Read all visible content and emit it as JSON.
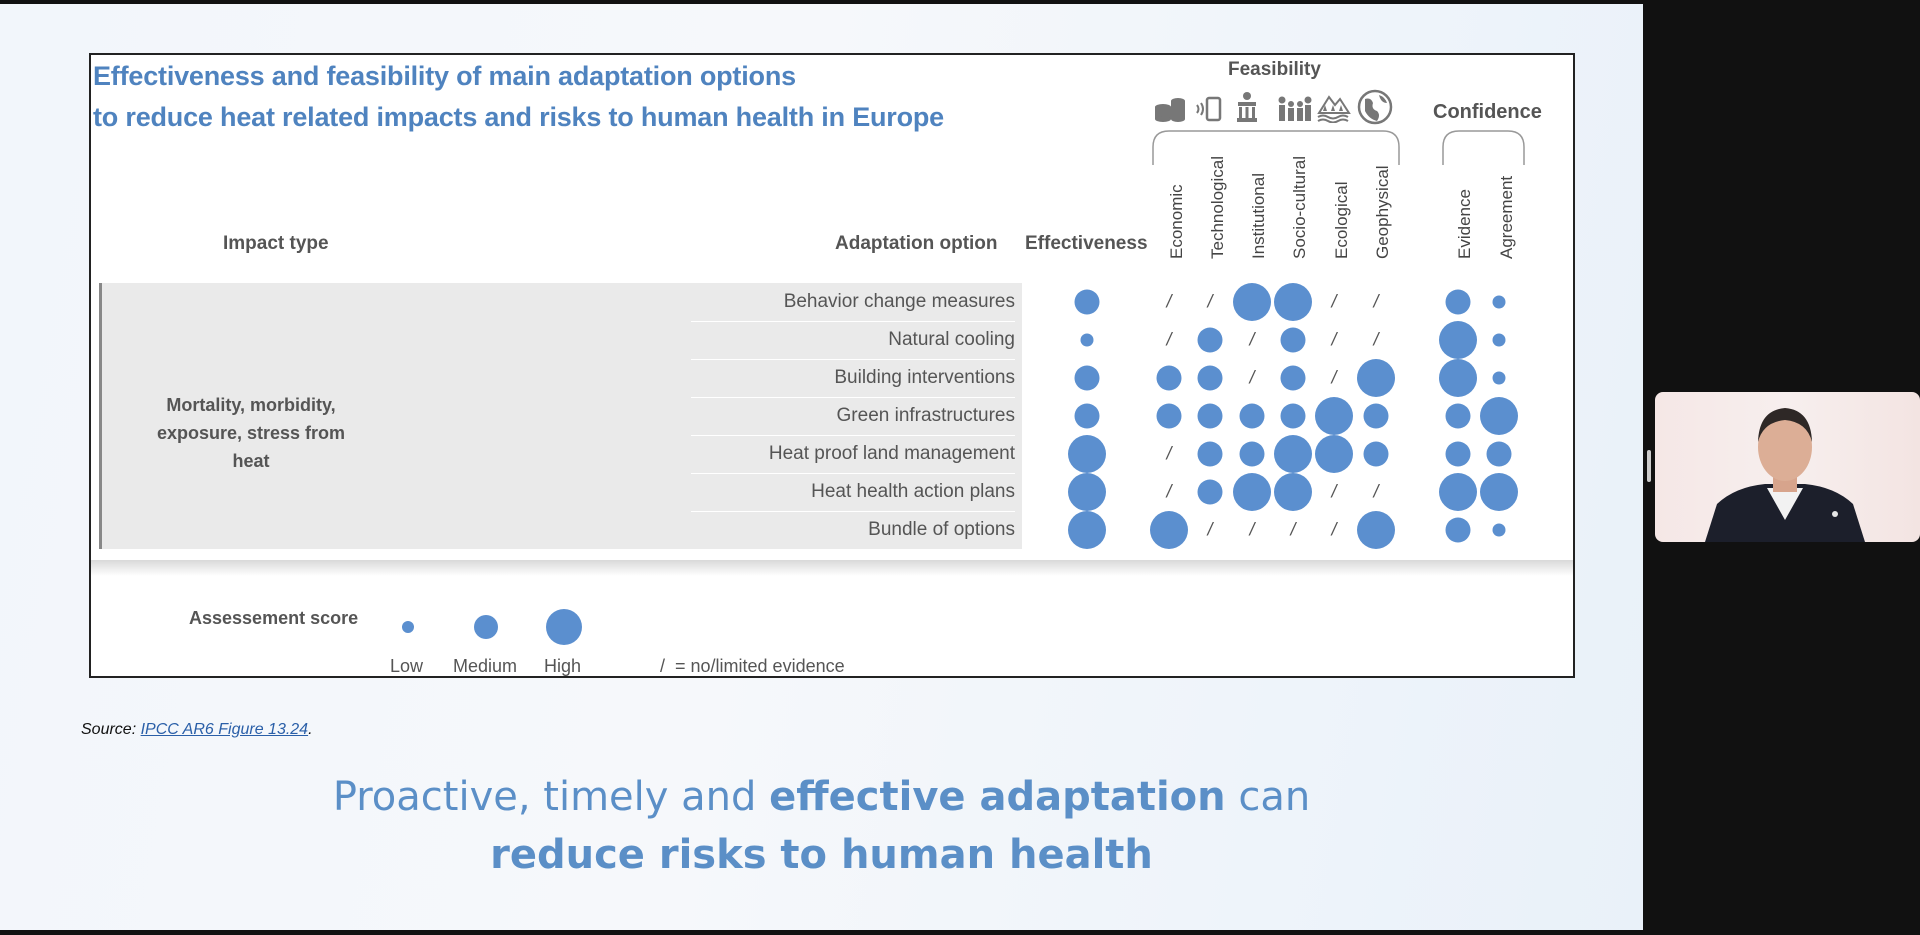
{
  "slide": {
    "figure_title_line1": "Effectiveness and feasibility of main adaptation options",
    "figure_title_line2": "to reduce heat related impacts and risks to human health in Europe",
    "source_prefix": "Source: ",
    "source_link": "IPCC AR6 Figure 13.24",
    "source_suffix": ".",
    "tagline_line1_part1": "Proactive, timely and ",
    "tagline_line1_bold": "effective adaptation",
    "tagline_line1_part2": " can",
    "tagline_line2_bold": "reduce risks to human health"
  },
  "chart_data": {
    "type": "table",
    "title": "Effectiveness and feasibility of main adaptation options to reduce heat related impacts and risks to human health in Europe",
    "impact_type_header": "Impact type",
    "adaptation_option_header": "Adaptation option",
    "feasibility_header": "Feasibility",
    "confidence_header": "Confidence",
    "impact_type": "Mortality, morbidity, exposure, stress from heat",
    "columns": [
      "Effectiveness",
      "Economic",
      "Technological",
      "Institutional",
      "Socio-cultural",
      "Ecological",
      "Geophysical",
      "Evidence",
      "Agreement"
    ],
    "feasibility_icons": [
      "economic-icon",
      "technological-icon",
      "institutional-icon",
      "socio-cultural-icon",
      "ecological-icon",
      "geophysical-icon"
    ],
    "score_scale": {
      "1": "Low",
      "2": "Medium",
      "3": "High",
      "0": "/ = no/limited evidence"
    },
    "rows": [
      {
        "option": "Behavior change measures",
        "scores": [
          2,
          0,
          0,
          3,
          3,
          0,
          0,
          2,
          1
        ]
      },
      {
        "option": "Natural cooling",
        "scores": [
          1,
          0,
          2,
          0,
          2,
          0,
          0,
          3,
          1
        ]
      },
      {
        "option": "Building interventions",
        "scores": [
          2,
          2,
          2,
          0,
          2,
          0,
          3,
          3,
          1
        ]
      },
      {
        "option": "Green infrastructures",
        "scores": [
          2,
          2,
          2,
          2,
          2,
          3,
          2,
          2,
          3
        ]
      },
      {
        "option": "Heat proof land management",
        "scores": [
          3,
          0,
          2,
          2,
          3,
          3,
          2,
          2,
          2
        ]
      },
      {
        "option": "Heat health action plans",
        "scores": [
          3,
          0,
          2,
          3,
          3,
          0,
          0,
          3,
          3
        ]
      },
      {
        "option": "Bundle of options",
        "scores": [
          3,
          3,
          0,
          0,
          0,
          0,
          3,
          2,
          1
        ]
      }
    ],
    "legend": {
      "title": "Assessement score",
      "low": "Low",
      "medium": "Medium",
      "high": "High",
      "slash_note": "/  = no/limited evidence"
    },
    "colors": {
      "dot": "#5b8fcf",
      "title": "#4f83bf"
    }
  }
}
